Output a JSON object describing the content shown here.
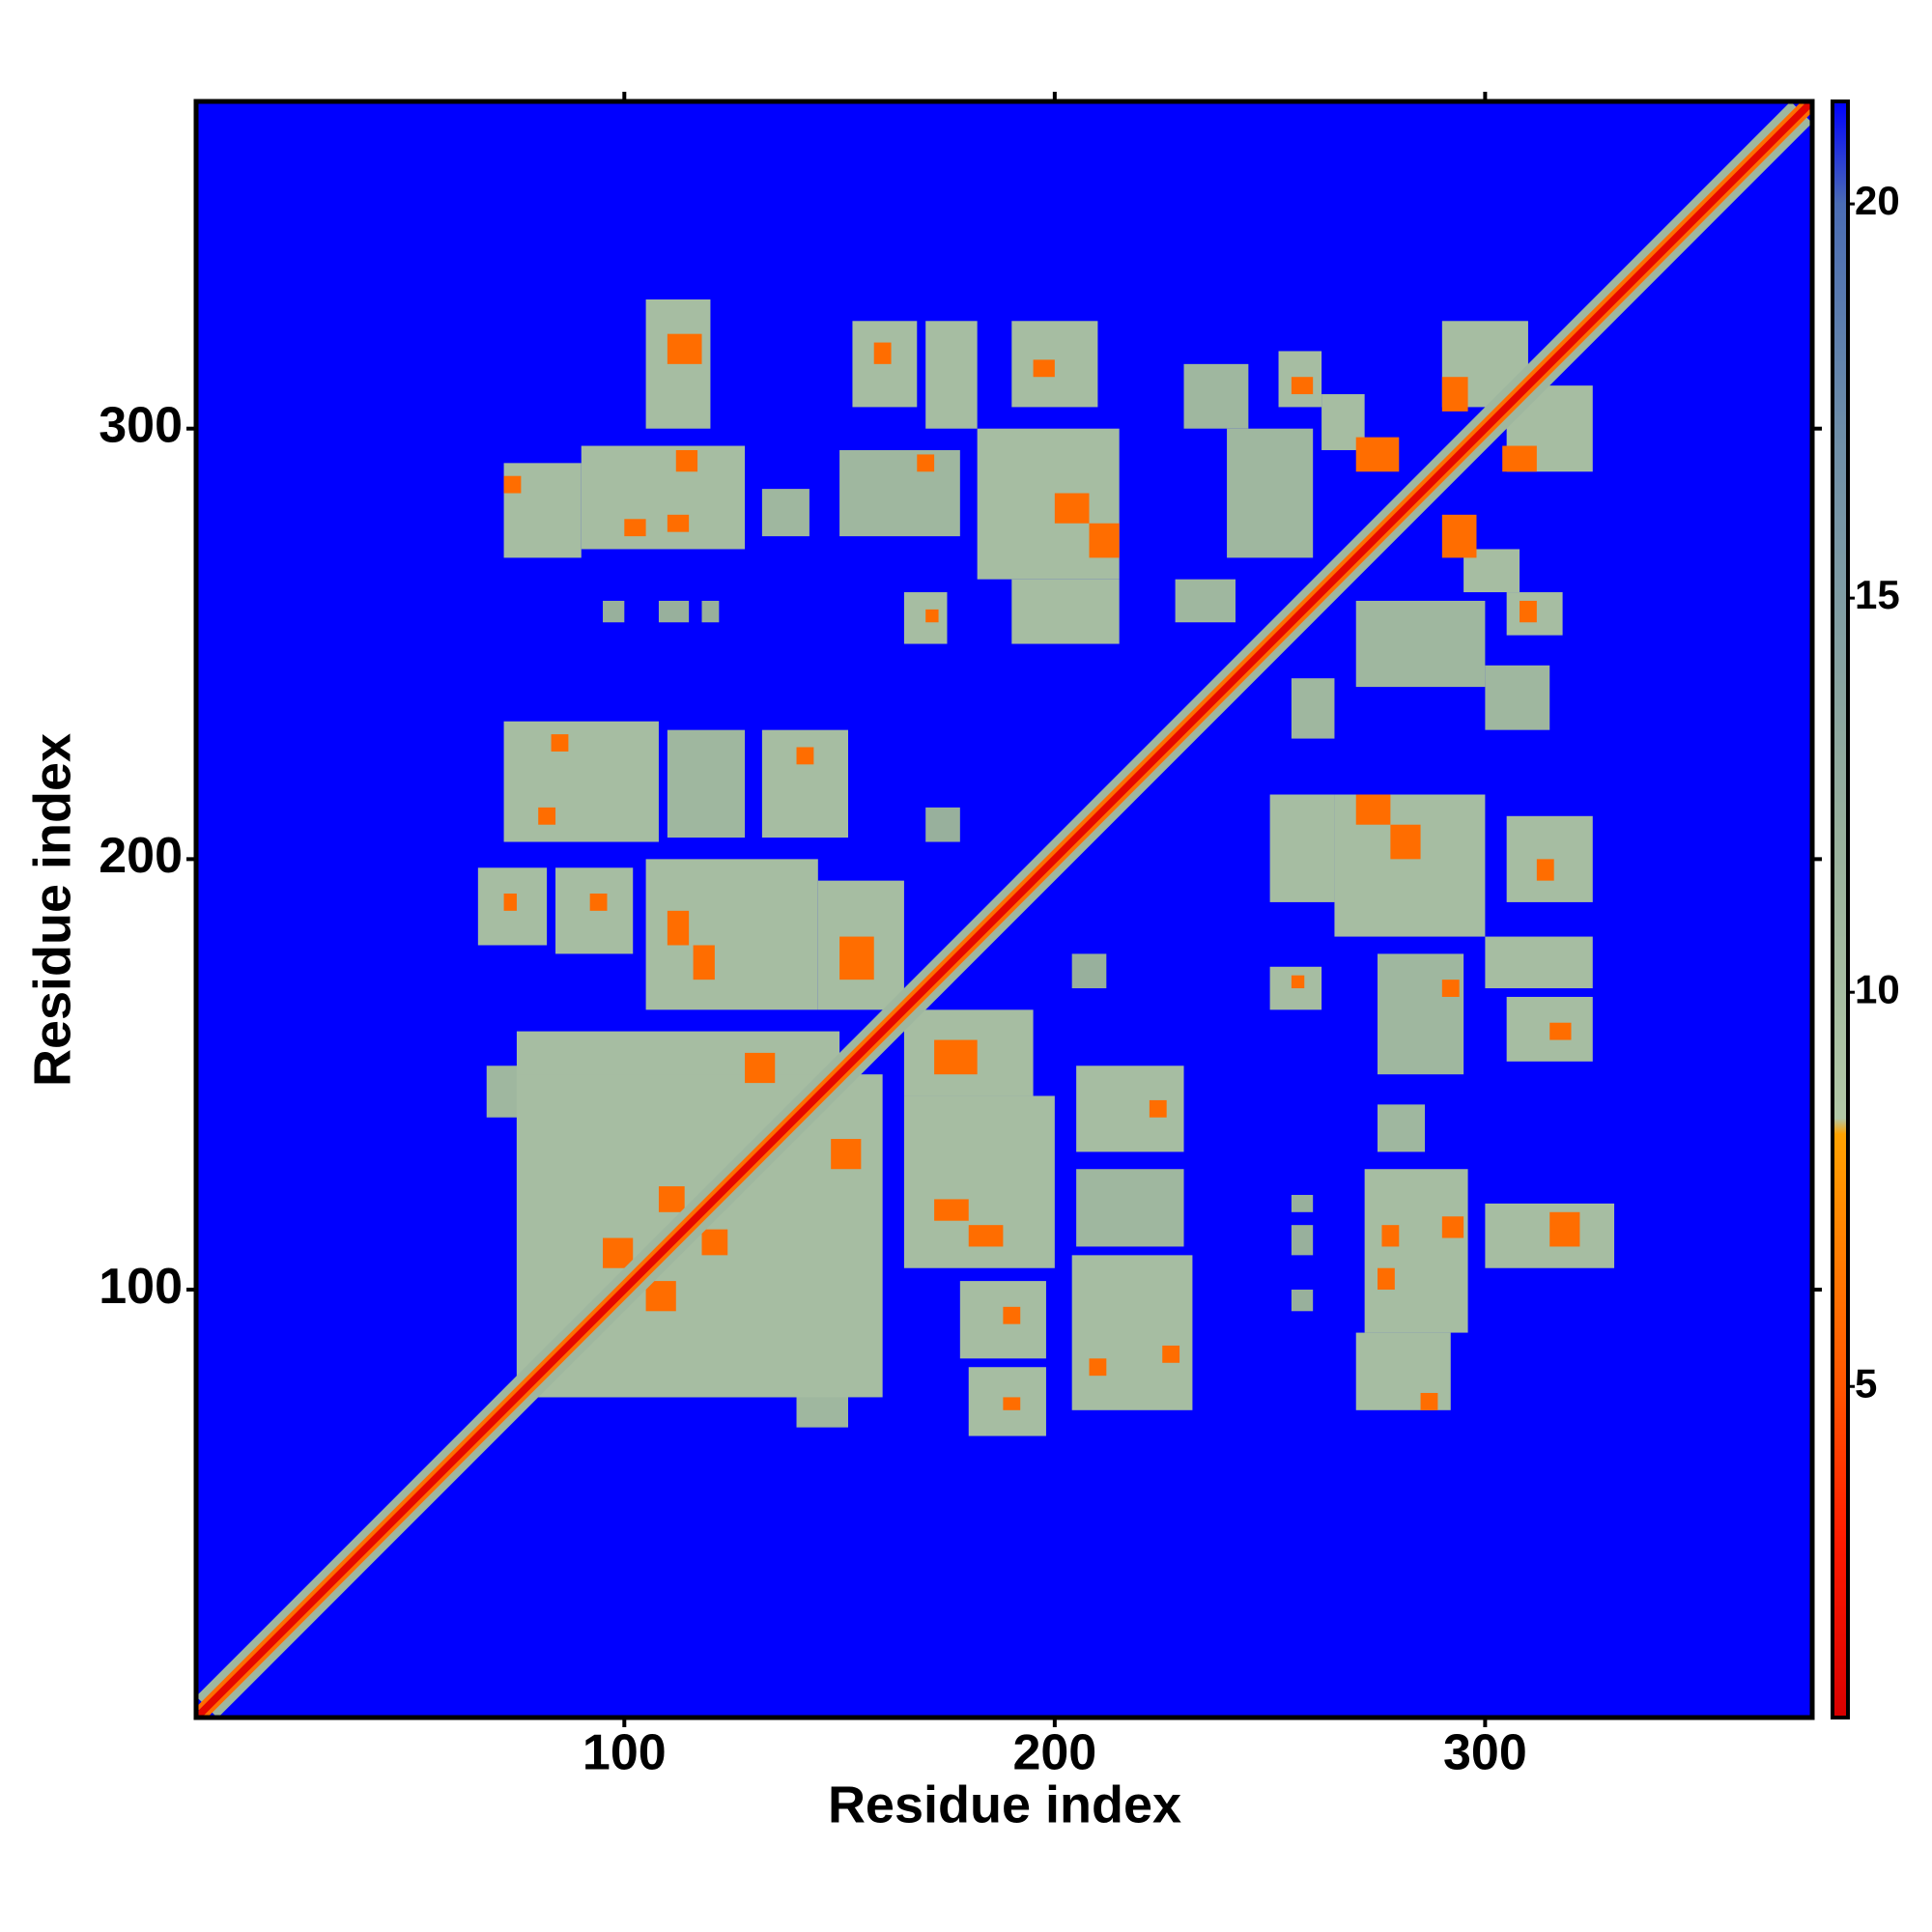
{
  "chart_data": {
    "type": "heatmap",
    "x_label": "Residue index",
    "y_label": "Residue index",
    "xlim": [
      0.5,
      376
    ],
    "ylim": [
      0.6,
      376
    ],
    "xticks": [
      100,
      200,
      300
    ],
    "yticks": [
      100,
      200,
      300
    ],
    "colorbar_lim": [
      0.8,
      21.3
    ],
    "colorbar_ticks": [
      5,
      10,
      15,
      20
    ],
    "colorscale": [
      [
        0.8,
        "#d80000"
      ],
      [
        3,
        "#ff1a00"
      ],
      [
        5,
        "#ff5500"
      ],
      [
        8.2,
        "#ffa200"
      ],
      [
        8.4,
        "#b2c8a6"
      ],
      [
        12,
        "#98b09c"
      ],
      [
        17,
        "#6f8fa8"
      ],
      [
        20,
        "#4a6cb4"
      ],
      [
        21.3,
        "#0000ff"
      ]
    ],
    "background_value": 21.3,
    "symmetric": true,
    "diagonal_bands": [
      {
        "value": 11,
        "half_width": 5
      },
      {
        "value": 6,
        "half_width": 2.5
      },
      {
        "value": 1.5,
        "half_width": 1.2
      }
    ],
    "cells": [
      [
        105,
        120,
        300,
        330,
        10
      ],
      [
        110,
        118,
        315,
        322,
        6
      ],
      [
        153,
        168,
        305,
        325,
        10
      ],
      [
        170,
        182,
        300,
        325,
        10
      ],
      [
        158,
        162,
        315,
        320,
        6
      ],
      [
        190,
        210,
        305,
        325,
        10
      ],
      [
        195,
        200,
        312,
        316,
        6
      ],
      [
        230,
        245,
        300,
        315,
        11
      ],
      [
        72,
        90,
        270,
        292,
        10
      ],
      [
        72,
        76,
        285,
        289,
        6
      ],
      [
        90,
        128,
        272,
        296,
        10
      ],
      [
        100,
        105,
        275,
        279,
        6
      ],
      [
        110,
        115,
        276,
        280,
        6
      ],
      [
        112,
        117,
        290,
        295,
        6
      ],
      [
        132,
        143,
        275,
        286,
        11
      ],
      [
        150,
        178,
        275,
        295,
        11
      ],
      [
        168,
        172,
        290,
        294,
        6
      ],
      [
        182,
        215,
        265,
        300,
        10
      ],
      [
        200,
        208,
        278,
        285,
        6
      ],
      [
        208,
        215,
        270,
        278,
        6
      ],
      [
        95,
        100,
        255,
        260,
        12
      ],
      [
        108,
        115,
        255,
        260,
        12
      ],
      [
        118,
        122,
        255,
        260,
        12
      ],
      [
        165,
        175,
        250,
        262,
        10
      ],
      [
        170,
        173,
        255,
        258,
        6
      ],
      [
        190,
        215,
        250,
        265,
        10
      ],
      [
        228,
        242,
        255,
        265,
        11
      ],
      [
        240,
        260,
        270,
        300,
        11
      ],
      [
        252,
        262,
        305,
        318,
        10
      ],
      [
        262,
        272,
        295,
        308,
        10
      ],
      [
        255,
        260,
        308,
        312,
        6
      ],
      [
        270,
        280,
        290,
        298,
        6
      ],
      [
        290,
        310,
        305,
        325,
        10
      ],
      [
        290,
        296,
        304,
        312,
        6
      ],
      [
        72,
        108,
        204,
        232,
        10
      ],
      [
        83,
        87,
        225,
        229,
        6
      ],
      [
        80,
        84,
        208,
        212,
        6
      ],
      [
        110,
        128,
        205,
        230,
        11
      ],
      [
        132,
        152,
        205,
        230,
        10
      ],
      [
        140,
        144,
        222,
        226,
        6
      ],
      [
        170,
        178,
        204,
        212,
        12
      ],
      [
        66,
        82,
        180,
        198,
        10
      ],
      [
        72,
        75,
        188,
        192,
        6
      ],
      [
        84,
        102,
        178,
        198,
        10
      ],
      [
        92,
        96,
        188,
        192,
        6
      ],
      [
        105,
        145,
        165,
        200,
        10
      ],
      [
        110,
        115,
        180,
        188,
        6
      ],
      [
        116,
        121,
        172,
        180,
        6
      ],
      [
        145,
        165,
        165,
        195,
        10
      ],
      [
        150,
        158,
        172,
        182,
        6
      ],
      [
        75,
        150,
        75,
        160,
        10
      ],
      [
        95,
        102,
        105,
        112,
        6
      ],
      [
        108,
        114,
        118,
        124,
        6
      ],
      [
        128,
        135,
        148,
        155,
        6
      ],
      [
        68,
        80,
        140,
        152,
        11
      ]
    ]
  }
}
